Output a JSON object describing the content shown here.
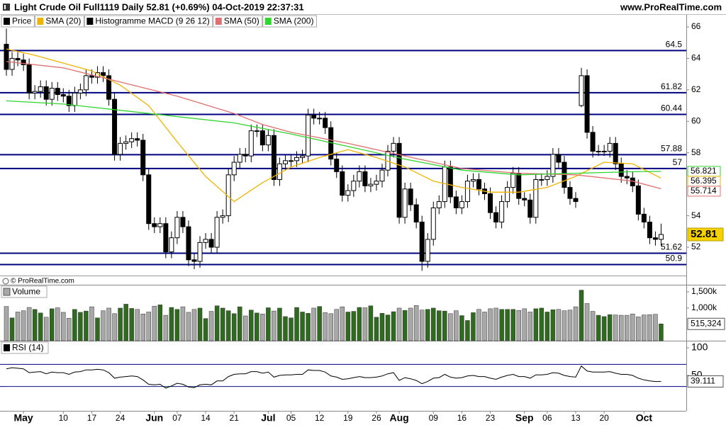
{
  "header": {
    "title": "Light Crude Oil Full1119 Daily 52.81 (+0.69%) 04-Oct-2019 22:37:31",
    "website": "www.ProRealTime.com",
    "copyright": "© ProRealTime.com"
  },
  "chart_data": [
    {
      "type": "candlestick",
      "ylim": [
        50.47,
        66.45
      ],
      "yticks": [
        52,
        54,
        58,
        60,
        62,
        64,
        66
      ],
      "levels": [
        64.5,
        61.82,
        60.44,
        57.88,
        57,
        51.62,
        50.9
      ],
      "level_color": "#000080",
      "series": [
        {
          "name": "Price",
          "color": "#000000",
          "open": [
            64.9,
            63.3,
            64.0,
            63.9,
            63.6,
            61.8,
            61.9,
            62.2,
            61.4,
            62.1,
            61.7,
            61.6,
            61.0,
            61.8,
            62.0,
            62.9,
            62.8,
            63.1,
            62.9,
            61.4,
            57.9,
            58.6,
            58.7,
            58.9,
            58.8,
            56.6,
            53.5,
            53.3,
            53.5,
            51.7,
            52.6,
            53.9,
            53.3,
            51.2,
            51.1,
            52.3,
            52.5,
            52.0,
            53.9,
            54.0,
            56.6,
            57.4,
            57.9,
            57.8,
            59.4,
            59.4,
            58.5,
            59.1,
            56.3,
            57.3,
            57.5,
            57.5,
            57.7,
            57.8,
            60.4,
            60.2,
            60.2,
            59.6,
            57.6,
            56.8,
            55.3,
            55.6,
            56.2,
            56.8,
            55.9,
            56.0,
            56.2,
            56.9,
            58.1,
            58.6,
            53.9,
            55.7,
            54.7,
            53.6,
            51.1,
            52.5,
            54.5,
            54.9,
            57.1,
            55.2,
            54.5,
            54.9,
            56.2,
            56.3,
            55.7,
            55.4,
            54.2,
            53.6,
            54.9,
            55.8,
            56.7,
            55.1,
            55.0,
            53.9,
            56.3,
            56.3,
            56.5,
            57.9,
            57.4,
            55.8,
            55.1,
            61.0,
            62.9,
            59.3,
            58.1,
            58.1,
            58.1,
            58.6,
            57.3,
            56.5,
            56.4,
            55.9,
            54.1,
            53.6,
            52.6,
            52.5
          ],
          "high": [
            65.9,
            64.4,
            64.4,
            64.3,
            64.0,
            62.3,
            62.6,
            62.6,
            62.5,
            62.5,
            62.1,
            62.0,
            62.2,
            62.4,
            63.3,
            63.3,
            63.5,
            63.5,
            63.3,
            61.8,
            59.0,
            59.1,
            59.3,
            59.3,
            59.2,
            57.0,
            53.9,
            53.9,
            53.9,
            53.0,
            54.3,
            54.3,
            53.7,
            51.6,
            52.7,
            52.9,
            52.9,
            54.3,
            54.4,
            57.0,
            57.8,
            58.3,
            58.3,
            59.8,
            59.8,
            59.8,
            59.5,
            59.5,
            57.7,
            57.9,
            57.9,
            58.1,
            58.2,
            60.8,
            60.8,
            60.6,
            60.6,
            60.0,
            58.0,
            57.2,
            56.0,
            56.6,
            57.2,
            57.2,
            56.4,
            56.6,
            57.3,
            58.5,
            59.0,
            59.0,
            56.1,
            56.1,
            55.1,
            54.0,
            52.9,
            54.9,
            55.3,
            57.5,
            57.5,
            55.6,
            55.3,
            56.6,
            56.7,
            56.7,
            56.1,
            55.8,
            54.6,
            55.3,
            56.2,
            57.1,
            57.1,
            55.5,
            55.4,
            56.7,
            56.7,
            56.9,
            58.3,
            58.3,
            57.8,
            56.2,
            55.5,
            63.4,
            63.3,
            59.7,
            58.5,
            58.5,
            59.0,
            59.0,
            57.7,
            56.9,
            56.8,
            56.3,
            54.5,
            54.0,
            53.0,
            53.5
          ],
          "low": [
            62.9,
            62.9,
            63.5,
            63.2,
            61.4,
            61.4,
            61.5,
            61.0,
            61.0,
            61.3,
            61.2,
            60.6,
            60.6,
            61.4,
            61.6,
            62.4,
            62.4,
            62.5,
            61.0,
            57.5,
            57.5,
            58.2,
            58.3,
            58.4,
            56.2,
            53.1,
            52.9,
            52.9,
            51.3,
            51.3,
            52.2,
            52.9,
            50.8,
            50.6,
            50.7,
            51.9,
            51.6,
            51.6,
            53.5,
            53.6,
            56.2,
            57.0,
            57.4,
            57.4,
            59.0,
            58.1,
            58.1,
            55.9,
            55.9,
            56.9,
            57.1,
            57.1,
            57.3,
            57.4,
            59.8,
            59.8,
            59.2,
            57.2,
            56.4,
            54.9,
            54.9,
            55.2,
            55.8,
            55.5,
            55.5,
            55.6,
            55.8,
            56.5,
            57.7,
            53.5,
            53.5,
            54.3,
            53.2,
            50.5,
            50.7,
            52.1,
            54.1,
            54.5,
            54.8,
            54.1,
            54.1,
            54.5,
            55.8,
            55.3,
            55.0,
            53.8,
            53.2,
            53.2,
            54.5,
            55.4,
            54.7,
            54.6,
            53.5,
            53.5,
            55.9,
            55.9,
            56.1,
            57.0,
            55.4,
            54.7,
            54.5,
            60.9,
            58.9,
            57.7,
            57.8,
            57.8,
            57.7,
            56.9,
            56.1,
            56.0,
            55.5,
            53.7,
            53.2,
            52.2,
            52.1,
            52.1
          ],
          "close": [
            63.3,
            64.0,
            63.9,
            63.6,
            61.8,
            61.9,
            62.2,
            61.4,
            62.1,
            61.7,
            61.6,
            61.0,
            61.8,
            62.0,
            62.9,
            62.8,
            63.1,
            62.9,
            61.4,
            57.9,
            58.6,
            58.7,
            58.9,
            58.8,
            56.6,
            53.5,
            53.3,
            53.5,
            51.7,
            52.6,
            53.9,
            53.3,
            51.2,
            51.1,
            52.3,
            52.5,
            52.0,
            53.9,
            54.0,
            56.6,
            57.4,
            57.9,
            57.8,
            59.4,
            59.4,
            58.5,
            59.1,
            56.3,
            57.3,
            57.5,
            57.5,
            57.7,
            57.8,
            60.4,
            60.2,
            60.2,
            59.6,
            57.6,
            56.8,
            55.3,
            55.6,
            56.2,
            56.8,
            55.9,
            56.0,
            56.2,
            56.9,
            58.1,
            58.6,
            53.9,
            55.7,
            54.7,
            53.6,
            51.1,
            52.5,
            54.5,
            54.9,
            57.1,
            55.2,
            54.5,
            54.9,
            56.2,
            56.3,
            55.7,
            55.4,
            54.2,
            53.6,
            54.9,
            55.8,
            56.7,
            55.1,
            55.0,
            53.9,
            56.3,
            56.3,
            56.5,
            57.9,
            57.4,
            55.8,
            55.1,
            54.9,
            62.9,
            59.3,
            58.1,
            58.1,
            58.1,
            58.6,
            57.3,
            56.5,
            56.4,
            55.9,
            54.1,
            53.6,
            52.6,
            52.5,
            52.81
          ]
        },
        {
          "name": "SMA (20)",
          "color": "#f0b400",
          "x": [
            0,
            5,
            10,
            15,
            20,
            25,
            30,
            35,
            40,
            45,
            50,
            55,
            60,
            65,
            70,
            75,
            80,
            85,
            90,
            95,
            100,
            105,
            110,
            115
          ],
          "values": [
            64.6,
            64.2,
            63.7,
            63.2,
            62.3,
            61.0,
            58.7,
            56.5,
            54.9,
            56.1,
            57.1,
            57.7,
            58.2,
            57.7,
            57.1,
            56.2,
            55.8,
            55.5,
            55.5,
            55.8,
            56.5,
            57.4,
            57.3,
            56.395
          ]
        },
        {
          "name": "Histogramme MACD (9 26 12)",
          "color": "#000000"
        },
        {
          "name": "SMA (50)",
          "color": "#e07070",
          "x": [
            0,
            10,
            20,
            30,
            40,
            45,
            50,
            60,
            70,
            80,
            90,
            100,
            110,
            115
          ],
          "values": [
            63.8,
            63.4,
            62.5,
            61.6,
            60.5,
            59.8,
            59.3,
            58.6,
            57.8,
            57.0,
            56.7,
            56.6,
            56.2,
            55.714
          ]
        },
        {
          "name": "SMA (200)",
          "color": "#2ed62e",
          "x": [
            0,
            10,
            20,
            30,
            40,
            50,
            60,
            70,
            80,
            90,
            100,
            110,
            115
          ],
          "values": [
            61.3,
            61.1,
            60.7,
            60.3,
            59.9,
            59.2,
            58.4,
            57.6,
            56.9,
            56.6,
            56.7,
            56.8,
            56.821
          ]
        }
      ]
    },
    {
      "type": "bar",
      "title": "Volume",
      "up_color": "#2f6b1f",
      "down_color": "#a8a8a8",
      "ylim": [
        0,
        1650000
      ],
      "yticks": [
        {
          "value": 1500000,
          "label": "1,500k"
        },
        {
          "value": 1000000,
          "label": "1,000k"
        }
      ],
      "values": [
        1050000,
        700000,
        880000,
        920000,
        1020000,
        960000,
        850000,
        720000,
        980000,
        1010000,
        870000,
        690000,
        960000,
        870000,
        910000,
        1040000,
        700000,
        920000,
        1000000,
        830000,
        1000000,
        1120000,
        990000,
        960000,
        820000,
        880000,
        1060000,
        1100000,
        780000,
        1020000,
        960000,
        1040000,
        870000,
        960000,
        1000000,
        680000,
        900000,
        1070000,
        1000000,
        920000,
        830000,
        1040000,
        760000,
        940000,
        850000,
        820000,
        1010000,
        910000,
        1000000,
        740000,
        700000,
        1020000,
        880000,
        840000,
        1000000,
        1050000,
        860000,
        830000,
        960000,
        1040000,
        880000,
        900000,
        1020000,
        1010000,
        1070000,
        720000,
        840000,
        790000,
        890000,
        1000000,
        930000,
        1000000,
        1080000,
        940000,
        960000,
        1000000,
        920000,
        910000,
        830000,
        920000,
        770000,
        620000,
        860000,
        960000,
        880000,
        980000,
        1000000,
        960000,
        960000,
        960000,
        930000,
        980000,
        880000,
        980000,
        1000000,
        880000,
        950000,
        960000,
        920000,
        940000,
        1040000,
        1550000,
        1140000,
        900000,
        780000,
        740000,
        800000,
        790000,
        780000,
        780000,
        820000,
        730000,
        790000,
        800000,
        810000,
        515324
      ],
      "value_labels": [
        null,
        null,
        null,
        null,
        null,
        null,
        null,
        null,
        null,
        null,
        null,
        null,
        null,
        null,
        null,
        null,
        null,
        null,
        null,
        null,
        null,
        null,
        null,
        null,
        null,
        null,
        null,
        null,
        null,
        null,
        null,
        null,
        null,
        null,
        null,
        null,
        null,
        null,
        null,
        null,
        null,
        null,
        null,
        null,
        null,
        null,
        null,
        null,
        null,
        null,
        null,
        null,
        null,
        null,
        null,
        null,
        null,
        null,
        null,
        null,
        null,
        null,
        null,
        null,
        null,
        null,
        null,
        null,
        null,
        null,
        null,
        null,
        null,
        null,
        null,
        null,
        null,
        null,
        null,
        null,
        null,
        null,
        null,
        null,
        null,
        null,
        null,
        null,
        null,
        null,
        null,
        null,
        null,
        null,
        null,
        null,
        null,
        null,
        null,
        null,
        null,
        null,
        null,
        null,
        null,
        null,
        null,
        null,
        null,
        null,
        null,
        null,
        null,
        null,
        null,
        "515,324"
      ]
    },
    {
      "type": "line",
      "title": "RSI (14)",
      "color": "#000000",
      "levels": [
        70,
        30
      ],
      "level_color": "#000080",
      "fill_color": "#7cc97c",
      "ylim": [
        -14,
        111.5
      ],
      "yticks": [
        100,
        50
      ],
      "categories": [
        null,
        null,
        null,
        "May",
        null,
        null,
        null,
        null,
        null,
        null,
        "10",
        null,
        null,
        null,
        null,
        "17",
        null,
        null,
        null,
        null,
        "24",
        null,
        null,
        null,
        null,
        null,
        "Jun",
        null,
        null,
        null,
        "07",
        null,
        null,
        null,
        null,
        "14",
        null,
        null,
        null,
        null,
        "21",
        null,
        null,
        null,
        null,
        null,
        "Jul",
        null,
        null,
        null,
        "05",
        null,
        null,
        null,
        null,
        "12",
        null,
        null,
        null,
        null,
        "19",
        null,
        null,
        null,
        null,
        "26",
        null,
        null,
        null,
        "Aug",
        null,
        null,
        null,
        null,
        null,
        "09",
        null,
        null,
        null,
        null,
        "16",
        null,
        null,
        null,
        null,
        "23",
        null,
        null,
        null,
        null,
        null,
        "Sep",
        null,
        null,
        null,
        "06",
        null,
        null,
        null,
        null,
        "13",
        null,
        null,
        null,
        null,
        "20",
        null,
        null,
        null,
        null,
        null,
        null,
        "Oct",
        null,
        null,
        null
      ],
      "values": [
        62,
        64,
        63,
        62,
        55,
        56,
        57,
        53,
        56,
        55,
        55,
        52,
        56,
        57,
        60,
        60,
        61,
        60,
        55,
        45,
        47,
        48,
        49,
        48,
        42,
        34,
        33,
        34,
        27,
        31,
        36,
        34,
        29,
        28,
        33,
        34,
        33,
        40,
        40,
        48,
        52,
        53,
        53,
        57,
        57,
        54,
        56,
        47,
        50,
        51,
        51,
        52,
        52,
        60,
        59,
        59,
        56,
        49,
        47,
        43,
        44,
        46,
        48,
        46,
        46,
        47,
        49,
        53,
        55,
        41,
        46,
        44,
        41,
        35,
        39,
        45,
        46,
        52,
        47,
        45,
        46,
        49,
        50,
        48,
        48,
        45,
        43,
        47,
        50,
        52,
        48,
        48,
        45,
        51,
        51,
        52,
        55,
        54,
        50,
        48,
        47,
        67,
        58,
        56,
        56,
        56,
        57,
        54,
        52,
        52,
        50,
        45,
        42,
        40,
        39,
        39.111
      ]
    }
  ]
}
